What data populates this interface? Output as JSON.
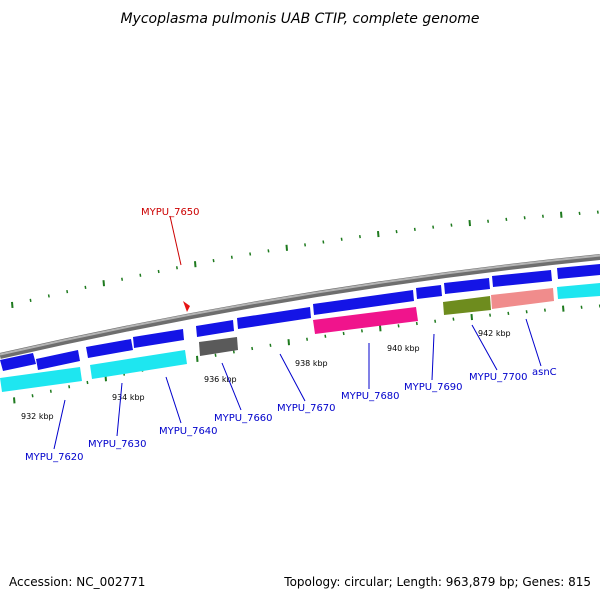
{
  "title": "Mycoplasma pulmonis UAB CTIP, complete genome",
  "accession": "Accession: NC_002771",
  "summary": "Topology: circular; Length: 963,879 bp; Genes: 815",
  "colors": {
    "backbone": "#8c8c8c",
    "gene_blue": "#1414e6",
    "cyan": "#1ee6f0",
    "magenta": "#f0148c",
    "gray": "#5a5a5a",
    "olive": "#6e8c1e",
    "salmon": "#f08c8c",
    "tick_green": "#1e7a1e",
    "marker_red": "#e61414",
    "label_blue": "#0000cc",
    "label_red": "#cc0000"
  },
  "gene_labels": [
    "MYPU_7620",
    "MYPU_7630",
    "MYPU_7640",
    "MYPU_7650",
    "MYPU_7660",
    "MYPU_7670",
    "MYPU_7680",
    "MYPU_7690",
    "MYPU_7700",
    "asnC"
  ],
  "kbp_labels": [
    "932 kbp",
    "934 kbp",
    "936 kbp",
    "938 kbp",
    "940 kbp",
    "942 kbp"
  ]
}
